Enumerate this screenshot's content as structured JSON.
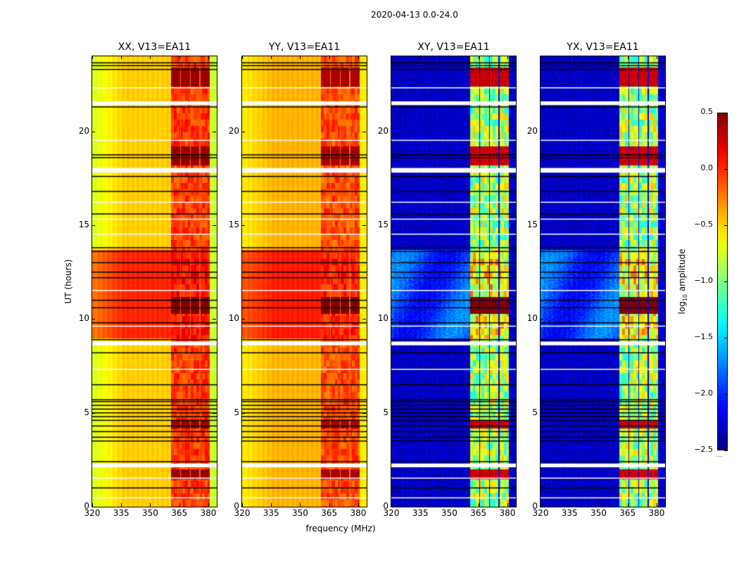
{
  "chart_data": {
    "type": "heatmap",
    "title": "2020-04-13 0.0-24.0",
    "xlabel": "frequency (MHz)",
    "ylabel": "UT (hours)",
    "xlim": [
      320,
      384.4
    ],
    "ylim": [
      0,
      24
    ],
    "xticks": [
      320,
      335,
      350,
      365,
      380
    ],
    "yticks": [
      0,
      5,
      10,
      15,
      20
    ],
    "colormap": "jet",
    "colorbar": {
      "label_parts": [
        "log",
        "10",
        " amplitude"
      ],
      "range": [
        -2.5,
        0.5
      ],
      "ticks": [
        0.5,
        0.0,
        -0.5,
        -1.0,
        -1.5,
        -2.0,
        -2.5
      ],
      "tick_labels": [
        "0.5",
        "0.0",
        "−0.5",
        "−1.0",
        "−1.5",
        "−2.0",
        "−2.5"
      ],
      "extend_marker": "......"
    },
    "subbands_mhz": [
      [
        360.7,
        365.3
      ],
      [
        365.8,
        370.3
      ],
      [
        370.8,
        375.3
      ],
      [
        375.9,
        380.4
      ]
    ],
    "active_period_hours": [
      9.0,
      13.7
    ],
    "panels": [
      {
        "title": "XX, V13=EA11",
        "continuum_low": -0.75,
        "continuum_high": -0.5,
        "active_boost": 0.5,
        "band_level": -0.05,
        "band_peak": 0.35,
        "edge_level": -0.8
      },
      {
        "title": "YY, V13=EA11",
        "continuum_low": -0.6,
        "continuum_high": -0.42,
        "active_boost": 0.45,
        "band_level": -0.1,
        "band_peak": 0.3,
        "edge_level": -0.6
      },
      {
        "title": "XY, V13=EA11",
        "continuum_low": -2.3,
        "continuum_high": -2.3,
        "active_boost": 0.55,
        "band_level": -0.9,
        "band_peak": 0.2,
        "edge_level": -2.3
      },
      {
        "title": "YX, V13=EA11",
        "continuum_low": -2.3,
        "continuum_high": -2.3,
        "active_boost": 0.55,
        "band_level": -0.9,
        "band_peak": 0.2,
        "edge_level": -2.3
      }
    ],
    "band_peak_hours": [
      [
        22.4,
        23.4
      ],
      [
        18.2,
        19.2
      ],
      [
        10.3,
        11.2
      ],
      [
        4.2,
        4.6
      ],
      [
        1.5,
        2.0
      ]
    ],
    "flagged_white_rows_hours": [
      [
        0.45,
        0.5
      ],
      [
        1.5,
        1.55
      ],
      [
        2.1,
        2.3
      ],
      [
        7.3,
        7.35
      ],
      [
        8.6,
        8.8
      ],
      [
        9.6,
        9.65
      ],
      [
        11.5,
        11.55
      ],
      [
        14.5,
        14.55
      ],
      [
        17.8,
        18.05
      ],
      [
        19.5,
        19.55
      ],
      [
        21.4,
        21.6
      ],
      [
        22.3,
        22.35
      ],
      [
        15.3,
        15.35
      ],
      [
        16.2,
        16.25
      ]
    ],
    "black_line_hours": [
      1.0,
      2.4,
      3.5,
      3.7,
      4.0,
      4.3,
      4.6,
      4.8,
      5.0,
      5.2,
      5.4,
      5.6,
      5.7,
      6.5,
      8.2,
      8.9,
      9.8,
      10.6,
      11.0,
      12.2,
      12.5,
      13.0,
      13.6,
      13.8,
      15.6,
      16.8,
      17.6,
      18.6,
      18.75,
      21.3,
      23.3,
      23.5,
      23.65
    ]
  }
}
